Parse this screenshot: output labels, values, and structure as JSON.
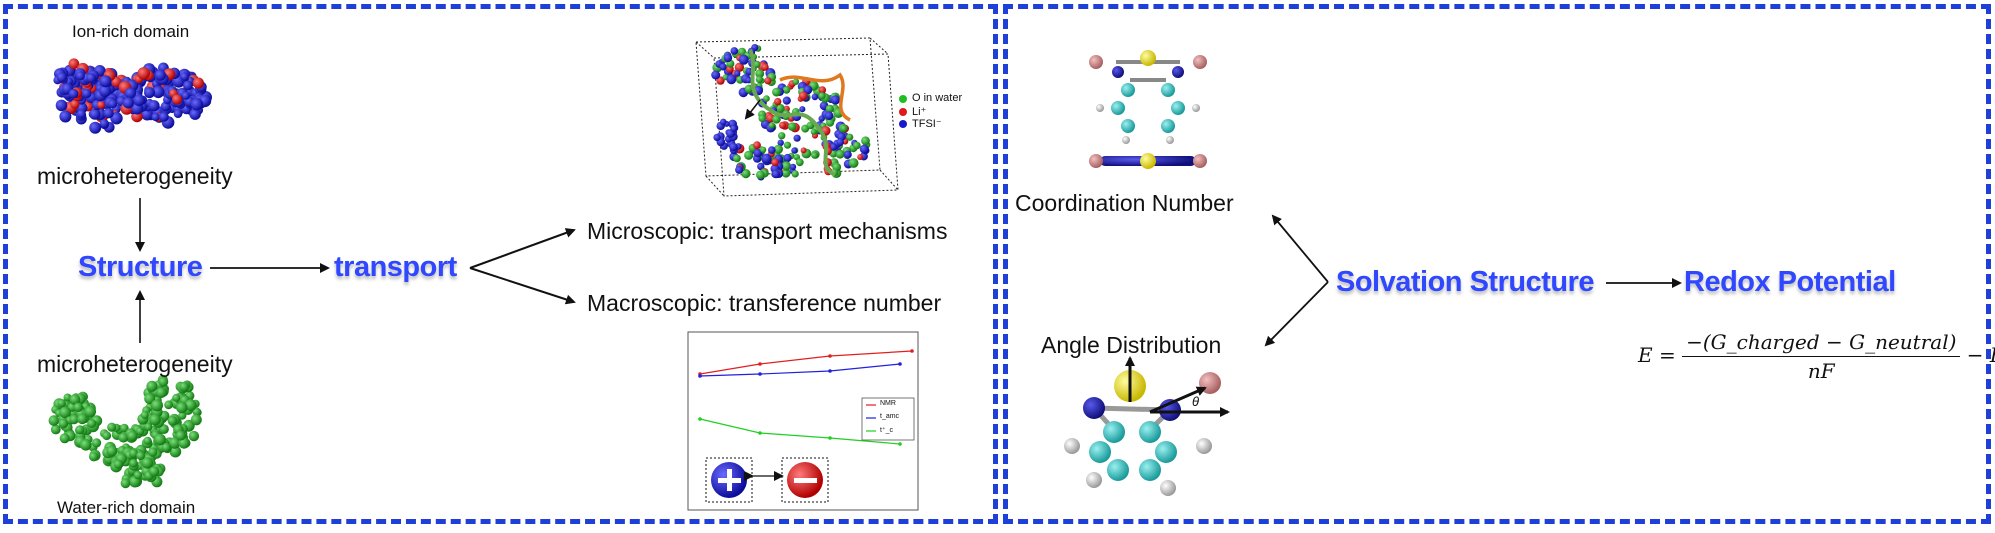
{
  "left_panel": {
    "ion_rich_label": "Ion-rich domain",
    "micro_top": "microheterogeneity",
    "micro_bottom": "microheterogeneity",
    "water_rich_label": "Water-rich domain",
    "structure": "Structure",
    "transport": "transport",
    "microscopic": "Microscopic: transport mechanisms",
    "macroscopic": "Macroscopic: transference number",
    "legend": [
      "O in water",
      "Li⁺",
      "TFSI⁻"
    ],
    "plot_legend": [
      "NMR",
      "t_amc",
      "t⁺_c"
    ]
  },
  "right_panel": {
    "coordination_number": "Coordination Number",
    "angle_distribution": "Angle Distribution",
    "solvation_structure": "Solvation Structure",
    "redox_potential": "Redox Potential",
    "theta": "θ",
    "formula": {
      "lhs": "E =",
      "numerator": "−(G_charged − G_neutral)",
      "denominator": "nF",
      "rhs": "− E_ref"
    }
  },
  "colors": {
    "accent": "#2f47ff",
    "border": "#1f3fd9",
    "ion_blue": "#1a1acc",
    "li_red": "#e01818",
    "water_green": "#1fa51f",
    "carbon": "#2bb3b3",
    "sulfur": "#e8e020",
    "halogen": "#c98080"
  }
}
